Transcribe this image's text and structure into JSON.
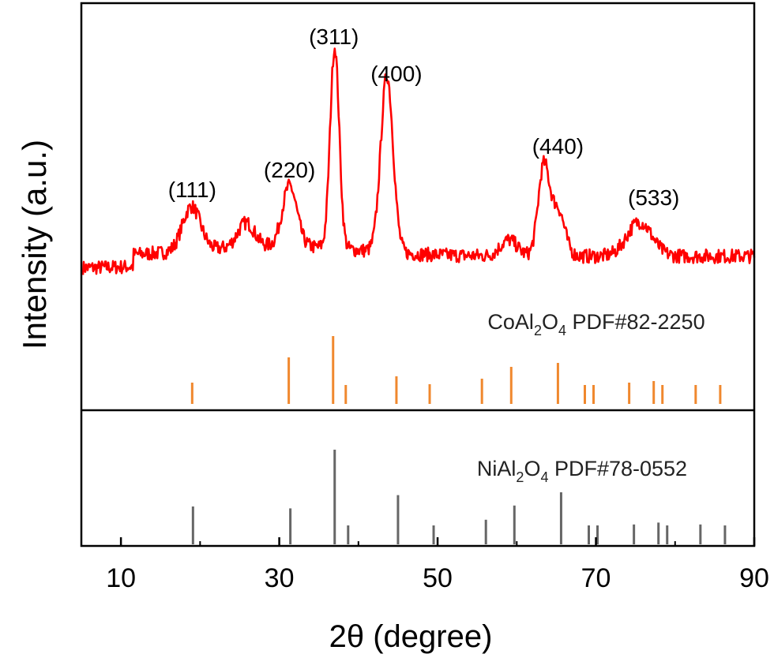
{
  "chart_data": {
    "type": "line",
    "xlabel": "2θ (degree)",
    "ylabel": "Intensity (a.u.)",
    "xlim": [
      5,
      90
    ],
    "xticks": [
      "10",
      "30",
      "50",
      "70",
      "90"
    ],
    "grid": false,
    "colors": {
      "pattern": "#ff0000",
      "coal": "#f0882e",
      "nial": "#666666",
      "axes": "#000000"
    },
    "peak_labels": [
      {
        "text": "(111)",
        "x": 19
      },
      {
        "text": "(220)",
        "x": 31.3
      },
      {
        "text": "(311)",
        "x": 36.9
      },
      {
        "text": "(400)",
        "x": 44.8
      },
      {
        "text": "(440)",
        "x": 65.2
      },
      {
        "text": "(533)",
        "x": 77.3
      }
    ],
    "series": [
      {
        "name": "",
        "comment": "measured XRD pattern, relative intensity",
        "peaks": [
          {
            "x": 18.9,
            "h": 0.22,
            "w": 1.6
          },
          {
            "x": 25.8,
            "h": 0.12,
            "w": 1.5
          },
          {
            "x": 31.3,
            "h": 0.3,
            "w": 1.3
          },
          {
            "x": 37.0,
            "h": 1.0,
            "w": 0.8
          },
          {
            "x": 43.6,
            "h": 0.88,
            "w": 1.1
          },
          {
            "x": 59.0,
            "h": 0.08,
            "w": 1.5
          },
          {
            "x": 63.4,
            "h": 0.44,
            "w": 1.0
          },
          {
            "x": 65.2,
            "h": 0.23,
            "w": 1.2
          },
          {
            "x": 75.5,
            "h": 0.17,
            "w": 2.2
          }
        ]
      }
    ],
    "references": [
      {
        "label_prefix": "CoAl",
        "sub1": "2",
        "mid": "O",
        "sub2": "4",
        "label_suffix": " PDF#82-2250",
        "sticks": [
          {
            "x": 19.0,
            "i": 0.27
          },
          {
            "x": 31.2,
            "i": 0.59
          },
          {
            "x": 36.8,
            "i": 0.86
          },
          {
            "x": 38.4,
            "i": 0.24
          },
          {
            "x": 44.8,
            "i": 0.35
          },
          {
            "x": 49.0,
            "i": 0.25
          },
          {
            "x": 55.6,
            "i": 0.32
          },
          {
            "x": 59.3,
            "i": 0.47
          },
          {
            "x": 65.2,
            "i": 0.52
          },
          {
            "x": 68.6,
            "i": 0.24
          },
          {
            "x": 69.7,
            "i": 0.24
          },
          {
            "x": 74.2,
            "i": 0.27
          },
          {
            "x": 77.3,
            "i": 0.29
          },
          {
            "x": 78.4,
            "i": 0.24
          },
          {
            "x": 82.6,
            "i": 0.24
          },
          {
            "x": 85.7,
            "i": 0.24
          }
        ]
      },
      {
        "label_prefix": "NiAl",
        "sub1": "2",
        "mid": "O",
        "sub2": "4",
        "label_suffix": " PDF#78-0552",
        "sticks": [
          {
            "x": 19.1,
            "i": 0.4
          },
          {
            "x": 31.4,
            "i": 0.38
          },
          {
            "x": 37.0,
            "i": 1.0
          },
          {
            "x": 38.7,
            "i": 0.2
          },
          {
            "x": 45.0,
            "i": 0.52
          },
          {
            "x": 49.5,
            "i": 0.2
          },
          {
            "x": 56.1,
            "i": 0.26
          },
          {
            "x": 59.7,
            "i": 0.41
          },
          {
            "x": 65.6,
            "i": 0.55
          },
          {
            "x": 69.1,
            "i": 0.2
          },
          {
            "x": 70.2,
            "i": 0.2
          },
          {
            "x": 74.8,
            "i": 0.21
          },
          {
            "x": 77.9,
            "i": 0.23
          },
          {
            "x": 79.0,
            "i": 0.2
          },
          {
            "x": 83.2,
            "i": 0.21
          },
          {
            "x": 86.3,
            "i": 0.2
          }
        ]
      }
    ]
  }
}
